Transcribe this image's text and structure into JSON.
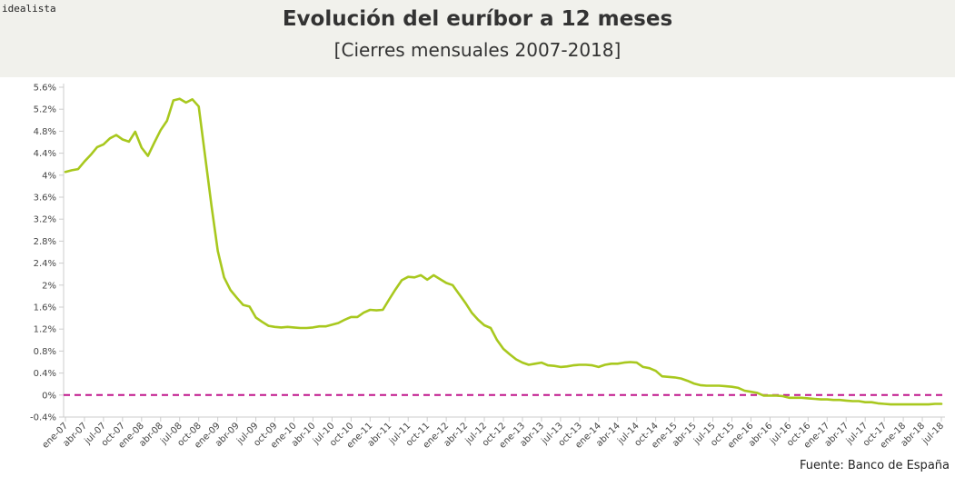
{
  "brand": "idealista",
  "source": "Fuente: Banco de España",
  "colors": {
    "line": "#a8c81e",
    "zero_line": "#c0168c",
    "header_bg": "#f1f1ec",
    "axis": "#cccccc"
  },
  "chart_data": {
    "type": "line",
    "title": "Evolución del euríbor a 12 meses",
    "subtitle": "[Cierres mensuales 2007-2018]",
    "xlabel": "",
    "ylabel": "",
    "ylim": [
      -0.4,
      5.6
    ],
    "y_ticks": [
      "5.6%",
      "5.2%",
      "4.8%",
      "4.4%",
      "4%",
      "3.6%",
      "3.2%",
      "2.8%",
      "2.4%",
      "2%",
      "1.6%",
      "1.2%",
      "0.8%",
      "0.4%",
      "0%",
      "-0.4%"
    ],
    "x_tick_labels": [
      "ene-07",
      "abr-07",
      "jul-07",
      "oct-07",
      "ene-08",
      "abr-08",
      "jul-08",
      "oct-08",
      "ene-09",
      "abr-09",
      "jul-09",
      "oct-09",
      "ene-10",
      "abr-10",
      "jul-10",
      "oct-10",
      "ene-11",
      "abr-11",
      "jul-11",
      "oct-11",
      "ene-12",
      "abr-12",
      "jul-12",
      "oct-12",
      "ene-13",
      "abr-13",
      "jul-13",
      "oct-13",
      "ene-14",
      "abr-14",
      "jul-14",
      "oct-14",
      "ene-15",
      "abr-15",
      "jul-15",
      "oct-15",
      "ene-16",
      "abr-16",
      "jul-16",
      "oct-16",
      "ene-17",
      "abr-17",
      "jul-17",
      "oct-17",
      "ene-18",
      "abr-18",
      "jul-18"
    ],
    "reference_line": 0,
    "grid": false,
    "series": [
      {
        "values": [
          4.06,
          4.09,
          4.11,
          4.25,
          4.37,
          4.51,
          4.56,
          4.67,
          4.73,
          4.65,
          4.61,
          4.79,
          4.5,
          4.35,
          4.59,
          4.82,
          4.99,
          5.36,
          5.39,
          5.32,
          5.38,
          5.25,
          4.35,
          3.45,
          2.62,
          2.14,
          1.91,
          1.77,
          1.64,
          1.61,
          1.41,
          1.33,
          1.26,
          1.24,
          1.23,
          1.24,
          1.23,
          1.22,
          1.22,
          1.23,
          1.25,
          1.25,
          1.28,
          1.31,
          1.37,
          1.42,
          1.42,
          1.5,
          1.55,
          1.54,
          1.55,
          1.74,
          1.92,
          2.09,
          2.15,
          2.14,
          2.18,
          2.1,
          2.18,
          2.11,
          2.04,
          2.0,
          1.84,
          1.68,
          1.5,
          1.37,
          1.27,
          1.22,
          1.0,
          0.84,
          0.74,
          0.65,
          0.59,
          0.55,
          0.57,
          0.59,
          0.54,
          0.53,
          0.51,
          0.52,
          0.54,
          0.55,
          0.55,
          0.54,
          0.51,
          0.55,
          0.57,
          0.57,
          0.59,
          0.6,
          0.59,
          0.51,
          0.49,
          0.44,
          0.34,
          0.33,
          0.32,
          0.3,
          0.26,
          0.21,
          0.18,
          0.17,
          0.17,
          0.17,
          0.16,
          0.15,
          0.13,
          0.08,
          0.06,
          0.04,
          -0.01,
          -0.01,
          -0.01,
          -0.02,
          -0.05,
          -0.05,
          -0.05,
          -0.06,
          -0.07,
          -0.08,
          -0.08,
          -0.09,
          -0.09,
          -0.1,
          -0.11,
          -0.11,
          -0.13,
          -0.13,
          -0.15,
          -0.16,
          -0.17,
          -0.17,
          -0.17,
          -0.17,
          -0.17,
          -0.17,
          -0.17,
          -0.16,
          -0.16
        ]
      }
    ]
  }
}
